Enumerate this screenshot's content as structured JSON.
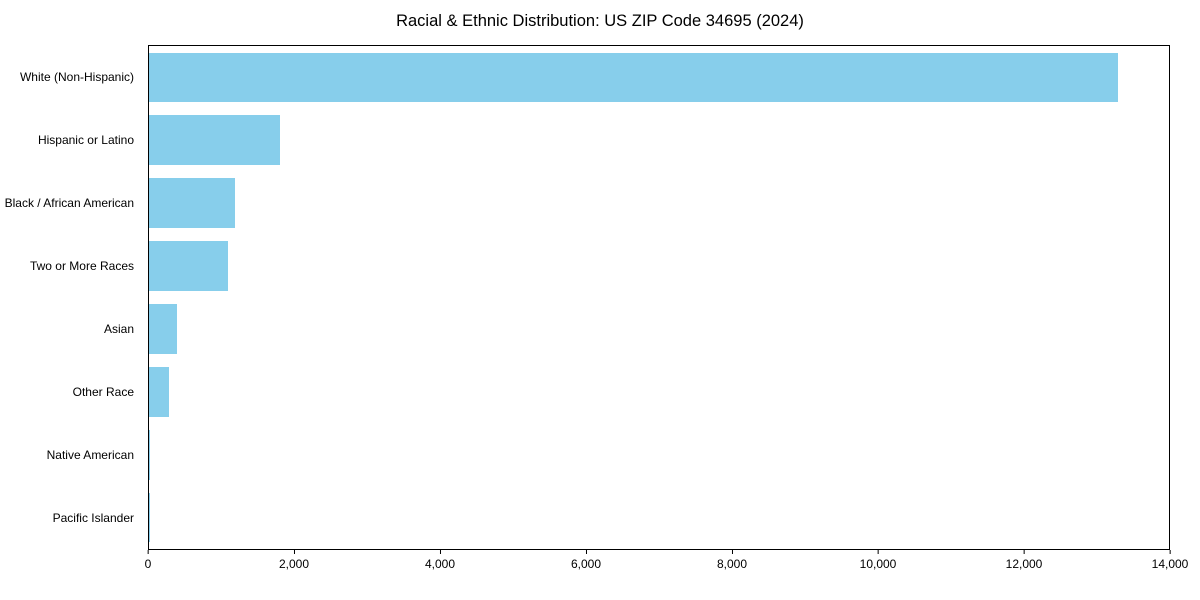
{
  "title": "Racial & Ethnic Distribution: US ZIP Code 34695 (2024)",
  "chart_data": {
    "type": "bar",
    "orientation": "horizontal",
    "title": "Racial & Ethnic Distribution: US ZIP Code 34695 (2024)",
    "categories": [
      "White (Non-Hispanic)",
      "Hispanic or Latino",
      "Black / African American",
      "Two or More Races",
      "Asian",
      "Other Race",
      "Native American",
      "Pacific Islander"
    ],
    "values": [
      13300,
      1800,
      1180,
      1090,
      380,
      275,
      20,
      8
    ],
    "xlim": [
      0,
      14000
    ],
    "x_ticks": [
      0,
      2000,
      4000,
      6000,
      8000,
      10000,
      12000,
      14000
    ],
    "x_tick_labels": [
      "0",
      "2,000",
      "4,000",
      "6,000",
      "8,000",
      "10,000",
      "12,000",
      "14,000"
    ],
    "bar_color": "#87CEEB",
    "grid": false,
    "legend": false,
    "xlabel": "",
    "ylabel": ""
  }
}
